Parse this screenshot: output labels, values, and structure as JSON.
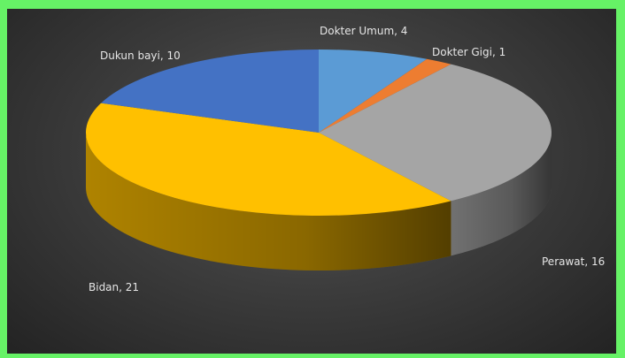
{
  "chart_data": {
    "type": "pie",
    "title": "",
    "style": "3d-pie",
    "slices": [
      {
        "label": "Dokter Umum",
        "value": 4,
        "color": "#5b9bd5",
        "label_text": "Dokter Umum, 4"
      },
      {
        "label": "Dokter Gigi",
        "value": 1,
        "color": "#ed7d31",
        "label_text": "Dokter Gigi, 1"
      },
      {
        "label": "Perawat",
        "value": 16,
        "color": "#a5a5a5",
        "label_text": "Perawat, 16"
      },
      {
        "label": "Bidan",
        "value": 21,
        "color": "#ffc000",
        "label_text": "Bidan, 21"
      },
      {
        "label": "Dukun bayi",
        "value": 10,
        "color": "#4472c4",
        "label_text": "Dukun bayi, 10"
      }
    ],
    "legend": "none"
  }
}
